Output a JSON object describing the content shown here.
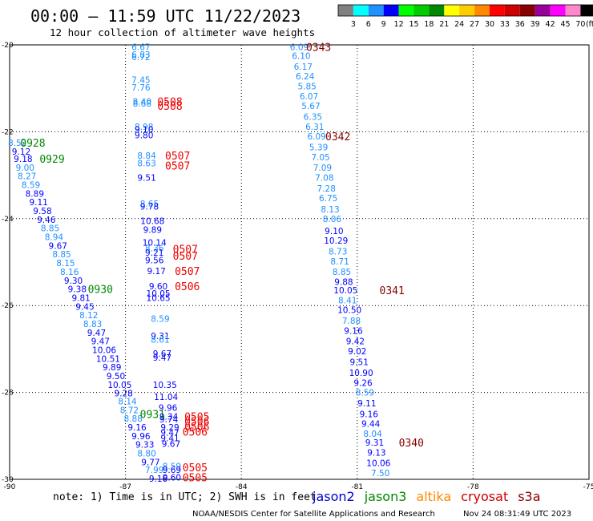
{
  "header": {
    "title": "00:00 — 11:59 UTC 11/22/2023",
    "subtitle": "12 hour collection of altimeter wave heights"
  },
  "footer": {
    "note": "note: 1) Time is in UTC; 2) SWH is in feet",
    "credit": "NOAA/NESDIS Center for Satellite Applications and Research",
    "timestamp": "Nov 24 08:31:49 UTC 2023"
  },
  "legend_scale": {
    "labels": [
      "3",
      "6",
      "9",
      "12",
      "15",
      "18",
      "21",
      "24",
      "27",
      "30",
      "33",
      "36",
      "39",
      "42",
      "45",
      "70"
    ],
    "unit": "(ft)",
    "colors": [
      "#808080",
      "#00ffff",
      "#1e90ff",
      "#0000ff",
      "#00ff00",
      "#00cc00",
      "#008800",
      "#ffff00",
      "#ffcc00",
      "#ff8800",
      "#ff0000",
      "#cc0000",
      "#880000",
      "#990099",
      "#ff00ff",
      "#ff88cc",
      "#000000"
    ]
  },
  "missions": [
    {
      "name": "jason2",
      "color": "#0000cc"
    },
    {
      "name": "jason3",
      "color": "#008800"
    },
    {
      "name": "altika",
      "color": "#ff8800"
    },
    {
      "name": "cryosat",
      "color": "#cc0000"
    },
    {
      "name": "s3a",
      "color": "#880000"
    }
  ],
  "chart_data": {
    "type": "scatter",
    "xlim": [
      -90,
      -75
    ],
    "ylim": [
      -30,
      -20
    ],
    "xticks": [
      "-90",
      "-87",
      "-84",
      "-81",
      "-78",
      "-75"
    ],
    "yticks": [
      "-20",
      "-22",
      "-24",
      "-26",
      "-28",
      "-30"
    ],
    "grid": true,
    "points": [
      {
        "x": -86.6,
        "y": -20.05,
        "v": "6.67",
        "c": "#1e90ff"
      },
      {
        "x": -86.6,
        "y": -20.22,
        "v": "6.83",
        "c": "#1e90ff"
      },
      {
        "x": -86.6,
        "y": -20.28,
        "v": "6.72",
        "c": "#1e90ff"
      },
      {
        "x": -86.6,
        "y": -20.8,
        "v": "7.45",
        "c": "#1e90ff"
      },
      {
        "x": -86.6,
        "y": -20.98,
        "v": "7.76",
        "c": "#1e90ff"
      },
      {
        "x": -86.57,
        "y": -21.3,
        "v": "8.40",
        "c": "#1e90ff"
      },
      {
        "x": -86.57,
        "y": -21.35,
        "v": "8.68",
        "c": "#1e90ff"
      },
      {
        "x": -86.52,
        "y": -21.88,
        "v": "8.98",
        "c": "#1e90ff"
      },
      {
        "x": -86.52,
        "y": -21.95,
        "v": "9.10",
        "c": "#0000ff"
      },
      {
        "x": -86.52,
        "y": -22.08,
        "v": "9.80",
        "c": "#0000ff"
      },
      {
        "x": -86.45,
        "y": -22.55,
        "v": "8.84",
        "c": "#1e90ff"
      },
      {
        "x": -86.45,
        "y": -22.72,
        "v": "8.63",
        "c": "#1e90ff"
      },
      {
        "x": -86.45,
        "y": -23.05,
        "v": "9.51",
        "c": "#0000ff"
      },
      {
        "x": -86.38,
        "y": -23.65,
        "v": "8.65",
        "c": "#1e90ff"
      },
      {
        "x": -86.38,
        "y": -23.72,
        "v": "9.78",
        "c": "#0000ff"
      },
      {
        "x": -86.3,
        "y": -24.05,
        "v": "10.68",
        "c": "#0000ff"
      },
      {
        "x": -86.3,
        "y": -24.25,
        "v": "9.89",
        "c": "#0000ff"
      },
      {
        "x": -86.25,
        "y": -24.55,
        "v": "10.14",
        "c": "#0000ff"
      },
      {
        "x": -86.25,
        "y": -24.68,
        "v": "8.36",
        "c": "#1e90ff"
      },
      {
        "x": -86.25,
        "y": -24.78,
        "v": "9.21",
        "c": "#0000ff"
      },
      {
        "x": -86.25,
        "y": -24.95,
        "v": "9.56",
        "c": "#0000ff"
      },
      {
        "x": -86.2,
        "y": -25.2,
        "v": "9.17",
        "c": "#0000ff"
      },
      {
        "x": -86.15,
        "y": -25.55,
        "v": "9.60",
        "c": "#0000ff"
      },
      {
        "x": -86.15,
        "y": -25.72,
        "v": "10.05",
        "c": "#0000ff"
      },
      {
        "x": -86.15,
        "y": -25.82,
        "v": "10.65",
        "c": "#0000ff"
      },
      {
        "x": -86.1,
        "y": -26.3,
        "v": "8.59",
        "c": "#1e90ff"
      },
      {
        "x": -86.1,
        "y": -26.7,
        "v": "9.31",
        "c": "#0000ff"
      },
      {
        "x": -86.1,
        "y": -26.78,
        "v": "8.61",
        "c": "#1e90ff"
      },
      {
        "x": -86.05,
        "y": -27.1,
        "v": "9.67",
        "c": "#0000ff"
      },
      {
        "x": -86.05,
        "y": -27.2,
        "v": "9.47",
        "c": "#0000ff"
      },
      {
        "x": -85.98,
        "y": -27.82,
        "v": "10.35",
        "c": "#0000ff"
      },
      {
        "x": -85.95,
        "y": -28.1,
        "v": "11.04",
        "c": "#0000ff"
      },
      {
        "x": -85.9,
        "y": -28.35,
        "v": "9.96",
        "c": "#0000ff"
      },
      {
        "x": -85.88,
        "y": -28.55,
        "v": "9.34",
        "c": "#0000ff"
      },
      {
        "x": -85.88,
        "y": -28.62,
        "v": "9.74",
        "c": "#0000ff"
      },
      {
        "x": -85.85,
        "y": -28.8,
        "v": "9.29",
        "c": "#0000ff"
      },
      {
        "x": -85.85,
        "y": -28.92,
        "v": "9.47",
        "c": "#0000ff"
      },
      {
        "x": -85.85,
        "y": -29.05,
        "v": "9.41",
        "c": "#0000ff"
      },
      {
        "x": -85.82,
        "y": -29.18,
        "v": "9.67",
        "c": "#0000ff"
      },
      {
        "x": -85.8,
        "y": -29.7,
        "v": "8.59",
        "c": "#1e90ff"
      },
      {
        "x": -85.8,
        "y": -29.78,
        "v": "9.69",
        "c": "#0000ff"
      },
      {
        "x": -85.8,
        "y": -29.95,
        "v": "9.60",
        "c": "#0000ff"
      },
      {
        "x": -89.8,
        "y": -22.25,
        "v": "8.52",
        "c": "#1e90ff"
      },
      {
        "x": -89.7,
        "y": -22.45,
        "v": "9.12",
        "c": "#0000ff"
      },
      {
        "x": -89.65,
        "y": -22.62,
        "v": "9.18",
        "c": "#0000ff"
      },
      {
        "x": -89.6,
        "y": -22.82,
        "v": "9.00",
        "c": "#1e90ff"
      },
      {
        "x": -89.55,
        "y": -23.02,
        "v": "8.27",
        "c": "#1e90ff"
      },
      {
        "x": -89.45,
        "y": -23.22,
        "v": "8.59",
        "c": "#1e90ff"
      },
      {
        "x": -89.35,
        "y": -23.42,
        "v": "8.89",
        "c": "#0000ff"
      },
      {
        "x": -89.25,
        "y": -23.62,
        "v": "9.11",
        "c": "#0000ff"
      },
      {
        "x": -89.15,
        "y": -23.82,
        "v": "9.58",
        "c": "#0000ff"
      },
      {
        "x": -89.05,
        "y": -24.02,
        "v": "9.46",
        "c": "#0000ff"
      },
      {
        "x": -88.95,
        "y": -24.22,
        "v": "8.85",
        "c": "#1e90ff"
      },
      {
        "x": -88.85,
        "y": -24.42,
        "v": "8.94",
        "c": "#1e90ff"
      },
      {
        "x": -88.75,
        "y": -24.62,
        "v": "9.67",
        "c": "#0000ff"
      },
      {
        "x": -88.65,
        "y": -24.82,
        "v": "8.85",
        "c": "#1e90ff"
      },
      {
        "x": -88.55,
        "y": -25.02,
        "v": "8.15",
        "c": "#1e90ff"
      },
      {
        "x": -88.45,
        "y": -25.22,
        "v": "8.16",
        "c": "#1e90ff"
      },
      {
        "x": -88.35,
        "y": -25.42,
        "v": "9.30",
        "c": "#0000ff"
      },
      {
        "x": -88.25,
        "y": -25.62,
        "v": "9.38",
        "c": "#0000ff"
      },
      {
        "x": -88.15,
        "y": -25.82,
        "v": "9.81",
        "c": "#0000ff"
      },
      {
        "x": -88.05,
        "y": -26.02,
        "v": "9.45",
        "c": "#0000ff"
      },
      {
        "x": -87.95,
        "y": -26.22,
        "v": "8.12",
        "c": "#1e90ff"
      },
      {
        "x": -87.85,
        "y": -26.42,
        "v": "8.83",
        "c": "#1e90ff"
      },
      {
        "x": -87.75,
        "y": -26.62,
        "v": "9.47",
        "c": "#0000ff"
      },
      {
        "x": -87.65,
        "y": -26.82,
        "v": "9.47",
        "c": "#0000ff"
      },
      {
        "x": -87.55,
        "y": -27.02,
        "v": "10.06",
        "c": "#0000ff"
      },
      {
        "x": -87.45,
        "y": -27.22,
        "v": "10.51",
        "c": "#0000ff"
      },
      {
        "x": -87.35,
        "y": -27.42,
        "v": "9.89",
        "c": "#0000ff"
      },
      {
        "x": -87.25,
        "y": -27.62,
        "v": "9.50",
        "c": "#0000ff"
      },
      {
        "x": -87.15,
        "y": -27.82,
        "v": "10.05",
        "c": "#0000ff"
      },
      {
        "x": -87.05,
        "y": -28.02,
        "v": "9.28",
        "c": "#0000ff"
      },
      {
        "x": -86.95,
        "y": -28.2,
        "v": "8.14",
        "c": "#1e90ff"
      },
      {
        "x": -86.9,
        "y": -28.4,
        "v": "8.72",
        "c": "#1e90ff"
      },
      {
        "x": -86.8,
        "y": -28.6,
        "v": "8.88",
        "c": "#1e90ff"
      },
      {
        "x": -86.7,
        "y": -28.8,
        "v": "9.16",
        "c": "#0000ff"
      },
      {
        "x": -86.6,
        "y": -29.0,
        "v": "9.96",
        "c": "#0000ff"
      },
      {
        "x": -86.5,
        "y": -29.2,
        "v": "9.33",
        "c": "#0000ff"
      },
      {
        "x": -86.45,
        "y": -29.4,
        "v": "8.80",
        "c": "#1e90ff"
      },
      {
        "x": -86.35,
        "y": -29.6,
        "v": "9.77",
        "c": "#0000ff"
      },
      {
        "x": -86.25,
        "y": -29.78,
        "v": "7.99",
        "c": "#1e90ff"
      },
      {
        "x": -86.15,
        "y": -29.98,
        "v": "9.16",
        "c": "#0000ff"
      },
      {
        "x": -82.5,
        "y": -20.05,
        "v": "6.09",
        "c": "#1e90ff"
      },
      {
        "x": -82.45,
        "y": -20.25,
        "v": "6.10",
        "c": "#1e90ff"
      },
      {
        "x": -82.4,
        "y": -20.5,
        "v": "6.17",
        "c": "#1e90ff"
      },
      {
        "x": -82.35,
        "y": -20.72,
        "v": "6.24",
        "c": "#1e90ff"
      },
      {
        "x": -82.3,
        "y": -20.95,
        "v": "5.85",
        "c": "#1e90ff"
      },
      {
        "x": -82.25,
        "y": -21.18,
        "v": "6.07",
        "c": "#1e90ff"
      },
      {
        "x": -82.2,
        "y": -21.4,
        "v": "5.67",
        "c": "#1e90ff"
      },
      {
        "x": -82.15,
        "y": -21.65,
        "v": "6.35",
        "c": "#1e90ff"
      },
      {
        "x": -82.1,
        "y": -21.88,
        "v": "6.31",
        "c": "#1e90ff"
      },
      {
        "x": -82.05,
        "y": -22.1,
        "v": "6.09",
        "c": "#1e90ff"
      },
      {
        "x": -82.0,
        "y": -22.35,
        "v": "5.39",
        "c": "#1e90ff"
      },
      {
        "x": -81.95,
        "y": -22.58,
        "v": "7.05",
        "c": "#1e90ff"
      },
      {
        "x": -81.9,
        "y": -22.82,
        "v": "7.09",
        "c": "#1e90ff"
      },
      {
        "x": -81.85,
        "y": -23.05,
        "v": "7.08",
        "c": "#1e90ff"
      },
      {
        "x": -81.8,
        "y": -23.3,
        "v": "7.28",
        "c": "#1e90ff"
      },
      {
        "x": -81.75,
        "y": -23.52,
        "v": "6.75",
        "c": "#1e90ff"
      },
      {
        "x": -81.7,
        "y": -23.78,
        "v": "8.13",
        "c": "#1e90ff"
      },
      {
        "x": -81.65,
        "y": -24.0,
        "v": "8.06",
        "c": "#1e90ff"
      },
      {
        "x": -81.6,
        "y": -24.28,
        "v": "9.10",
        "c": "#0000ff"
      },
      {
        "x": -81.55,
        "y": -24.5,
        "v": "10.29",
        "c": "#0000ff"
      },
      {
        "x": -81.5,
        "y": -24.75,
        "v": "8.73",
        "c": "#1e90ff"
      },
      {
        "x": -81.45,
        "y": -24.98,
        "v": "8.71",
        "c": "#1e90ff"
      },
      {
        "x": -81.4,
        "y": -25.22,
        "v": "8.85",
        "c": "#1e90ff"
      },
      {
        "x": -81.35,
        "y": -25.45,
        "v": "9.88",
        "c": "#0000ff"
      },
      {
        "x": -81.3,
        "y": -25.65,
        "v": "10.05",
        "c": "#0000ff"
      },
      {
        "x": -81.25,
        "y": -25.88,
        "v": "8.41",
        "c": "#1e90ff"
      },
      {
        "x": -81.2,
        "y": -26.1,
        "v": "10.50",
        "c": "#0000ff"
      },
      {
        "x": -81.15,
        "y": -26.35,
        "v": "7.88",
        "c": "#1e90ff"
      },
      {
        "x": -81.1,
        "y": -26.58,
        "v": "9.16",
        "c": "#0000ff"
      },
      {
        "x": -81.05,
        "y": -26.82,
        "v": "9.42",
        "c": "#0000ff"
      },
      {
        "x": -81.0,
        "y": -27.05,
        "v": "9.02",
        "c": "#0000ff"
      },
      {
        "x": -80.95,
        "y": -27.3,
        "v": "9.51",
        "c": "#0000ff"
      },
      {
        "x": -80.9,
        "y": -27.55,
        "v": "10.90",
        "c": "#0000ff"
      },
      {
        "x": -80.85,
        "y": -27.78,
        "v": "9.26",
        "c": "#0000ff"
      },
      {
        "x": -80.8,
        "y": -28.0,
        "v": "8.59",
        "c": "#1e90ff"
      },
      {
        "x": -80.75,
        "y": -28.25,
        "v": "9.11",
        "c": "#0000ff"
      },
      {
        "x": -80.7,
        "y": -28.5,
        "v": "9.16",
        "c": "#0000ff"
      },
      {
        "x": -80.65,
        "y": -28.72,
        "v": "9.44",
        "c": "#0000ff"
      },
      {
        "x": -80.6,
        "y": -28.95,
        "v": "8.04",
        "c": "#1e90ff"
      },
      {
        "x": -80.55,
        "y": -29.15,
        "v": "9.31",
        "c": "#0000ff"
      },
      {
        "x": -80.5,
        "y": -29.38,
        "v": "9.13",
        "c": "#0000ff"
      },
      {
        "x": -80.45,
        "y": -29.62,
        "v": "10.06",
        "c": "#0000ff"
      },
      {
        "x": -80.4,
        "y": -29.85,
        "v": "7.50",
        "c": "#1e90ff"
      }
    ],
    "time_labels": [
      {
        "x": -82.0,
        "y": -20.05,
        "t": "0343",
        "c": "#880000"
      },
      {
        "x": -81.5,
        "y": -22.1,
        "t": "0342",
        "c": "#880000"
      },
      {
        "x": -80.1,
        "y": -25.65,
        "t": "0341",
        "c": "#880000"
      },
      {
        "x": -79.6,
        "y": -29.15,
        "t": "0340",
        "c": "#880000"
      },
      {
        "x": -89.4,
        "y": -22.25,
        "t": "0928",
        "c": "#008800"
      },
      {
        "x": -88.9,
        "y": -22.62,
        "t": "0929",
        "c": "#008800"
      },
      {
        "x": -87.65,
        "y": -25.62,
        "t": "0930",
        "c": "#008800"
      },
      {
        "x": -86.3,
        "y": -28.5,
        "t": "0931",
        "c": "#008800"
      },
      {
        "x": -85.85,
        "y": -21.3,
        "t": "0508",
        "c": "#ee0000"
      },
      {
        "x": -85.85,
        "y": -21.4,
        "t": "0508",
        "c": "#ee0000"
      },
      {
        "x": -85.65,
        "y": -22.55,
        "t": "0507",
        "c": "#ee0000"
      },
      {
        "x": -85.65,
        "y": -22.78,
        "t": "0507",
        "c": "#ee0000"
      },
      {
        "x": -85.45,
        "y": -24.7,
        "t": "0507",
        "c": "#ee0000"
      },
      {
        "x": -85.45,
        "y": -24.85,
        "t": "0507",
        "c": "#ee0000"
      },
      {
        "x": -85.4,
        "y": -25.2,
        "t": "0507",
        "c": "#ee0000"
      },
      {
        "x": -85.4,
        "y": -25.55,
        "t": "0506",
        "c": "#ee0000"
      },
      {
        "x": -85.15,
        "y": -28.55,
        "t": "0505",
        "c": "#ee0000"
      },
      {
        "x": -85.15,
        "y": -28.66,
        "t": "0506",
        "c": "#ee0000"
      },
      {
        "x": -85.15,
        "y": -28.78,
        "t": "0506",
        "c": "#ee0000"
      },
      {
        "x": -85.2,
        "y": -28.9,
        "t": "0506",
        "c": "#ee0000"
      },
      {
        "x": -85.2,
        "y": -29.72,
        "t": "0505",
        "c": "#ee0000"
      },
      {
        "x": -85.2,
        "y": -29.95,
        "t": "0505",
        "c": "#ee0000"
      }
    ]
  }
}
